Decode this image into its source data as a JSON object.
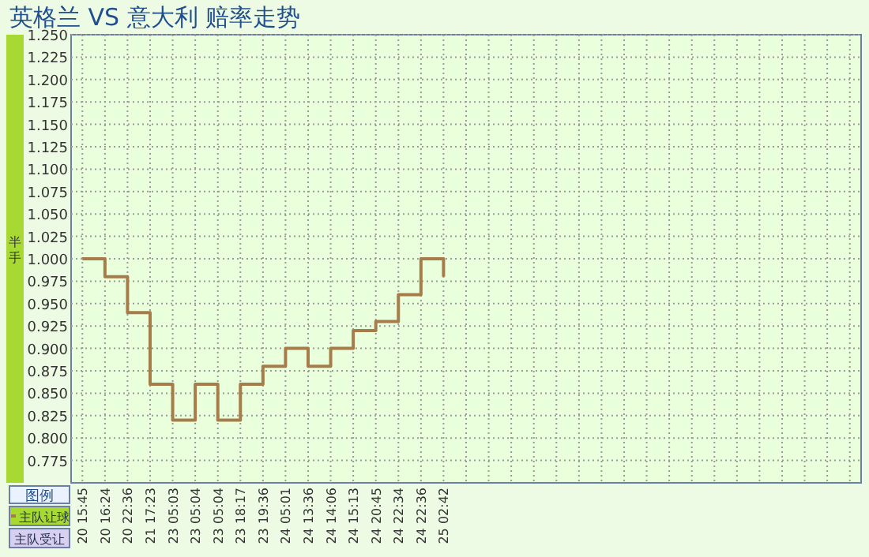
{
  "chart_data": {
    "type": "step",
    "title": "英格兰 VS 意大利    赔率走势",
    "ylabel": "半手",
    "legend_title": "图例",
    "categories": [
      "20 15:45",
      "20 16:24",
      "20 22:36",
      "21 17:23",
      "23 05:03",
      "23 05:04",
      "23 05:04",
      "23 18:17",
      "23 19:36",
      "24 05:01",
      "24 13:36",
      "24 14:06",
      "24 15:13",
      "24 20:45",
      "24 22:34",
      "24 22:36",
      "25 02:42",
      null,
      null,
      null,
      null,
      null,
      null,
      null,
      null,
      null,
      null,
      null,
      null,
      null,
      null,
      null,
      null,
      null,
      null
    ],
    "series": [
      {
        "name": "主队让球",
        "color": "#a67c4a",
        "values": [
          1.0,
          0.98,
          0.94,
          0.86,
          0.82,
          0.86,
          0.82,
          0.86,
          0.88,
          0.9,
          0.88,
          0.9,
          0.92,
          0.93,
          0.96,
          1.0,
          0.98,
          null,
          null,
          null,
          null,
          null,
          null,
          null,
          null,
          null,
          null,
          null,
          null,
          null,
          null,
          null,
          null,
          null,
          null
        ]
      }
    ],
    "ylim": [
      0.75,
      1.25
    ],
    "yticks": [
      {
        "value": 0.775,
        "label": "0.775"
      },
      {
        "value": 0.8,
        "label": "0.800"
      },
      {
        "value": 0.825,
        "label": "0.825"
      },
      {
        "value": 0.85,
        "label": "0.850"
      },
      {
        "value": 0.875,
        "label": "0.875"
      },
      {
        "value": 0.9,
        "label": "0.900"
      },
      {
        "value": 0.925,
        "label": "0.925"
      },
      {
        "value": 0.95,
        "label": "0.950"
      },
      {
        "value": 0.975,
        "label": "0.975"
      },
      {
        "value": 1.0,
        "label": "1.000"
      },
      {
        "value": 1.025,
        "label": "1.025"
      },
      {
        "value": 1.05,
        "label": "1.050"
      },
      {
        "value": 1.075,
        "label": "1.075"
      },
      {
        "value": 1.1,
        "label": "1.100"
      },
      {
        "value": 1.125,
        "label": "1.125"
      },
      {
        "value": 1.15,
        "label": "1.150"
      },
      {
        "value": 1.175,
        "label": "1.175"
      },
      {
        "value": 1.2,
        "label": "1.200"
      },
      {
        "value": 1.225,
        "label": "1.225"
      },
      {
        "value": 1.25,
        "label": "1.250"
      }
    ],
    "grid": true,
    "legend": "bottom left",
    "annotations": [
      "主队受让"
    ]
  }
}
